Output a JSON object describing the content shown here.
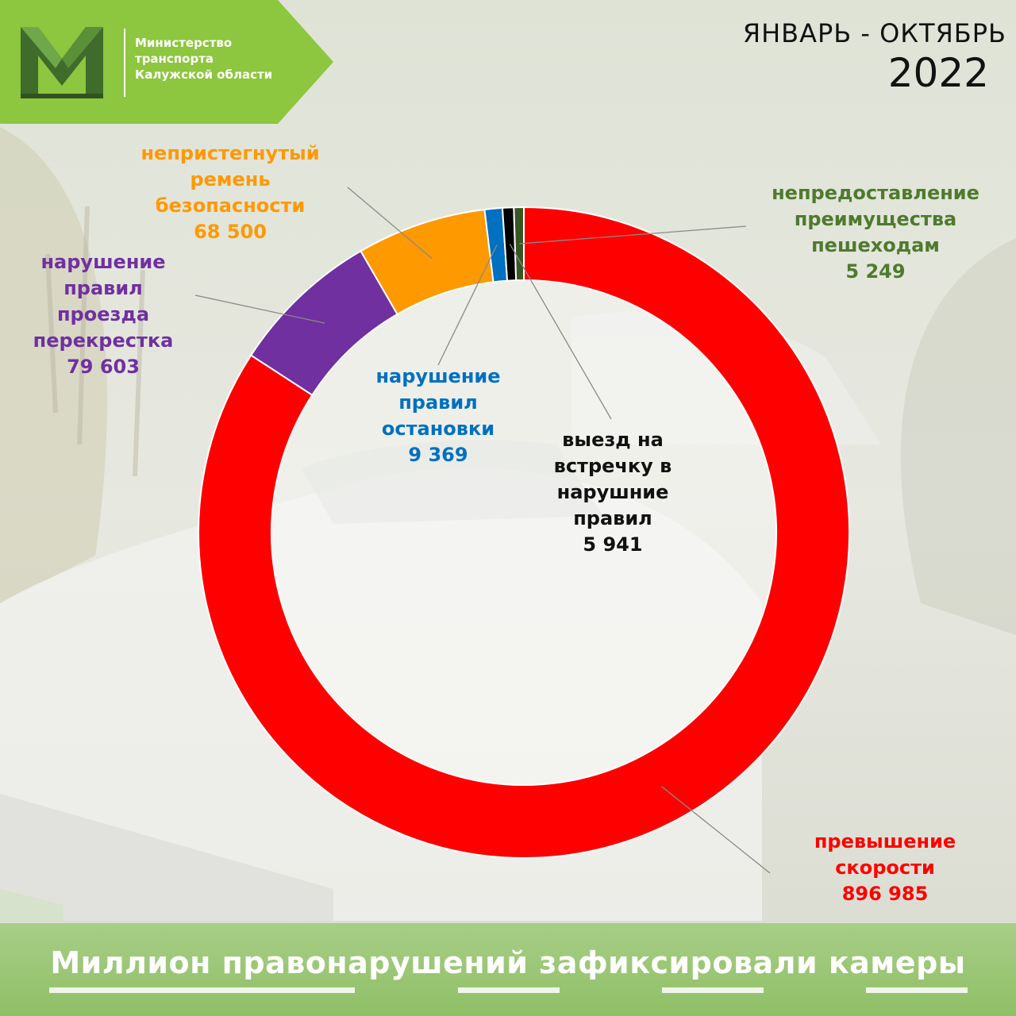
{
  "header": {
    "org_lines": [
      "Министерство",
      "транспорта",
      "Калужской области"
    ],
    "period_months": "ЯНВАРЬ - ОКТЯБРЬ",
    "period_year": "2022"
  },
  "footer": {
    "title": "Миллион правонарушений зафиксировали камеры"
  },
  "colors": {
    "brand_green": "#8dc63f",
    "dark_green": "#3f6b2b",
    "speed": "#ff0000",
    "intersection": "#7030a0",
    "seatbelt": "#ff9900",
    "stopping": "#0070c0",
    "oncoming": "#000000",
    "pedestrians": "#375623"
  },
  "chart_data": {
    "type": "pie",
    "donut": true,
    "title": "",
    "categories": [
      "превышение скорости",
      "нарушение правил проезда перекрестка",
      "непристегнутый ремень безопасности",
      "нарушение правил остановки",
      "выезд на встречку в нарушние правил",
      "непредоставление преимущества пешеходам"
    ],
    "values": [
      896985,
      79603,
      68500,
      9369,
      5941,
      5249
    ],
    "value_labels": [
      "896 985",
      "79 603",
      "68 500",
      "9 369",
      "5 941",
      "5 249"
    ],
    "slice_colors": [
      "#ff0000",
      "#7030a0",
      "#ff9900",
      "#0070c0",
      "#000000",
      "#375623"
    ],
    "labels": {
      "speed": {
        "lines": [
          "превышение",
          "скорости"
        ],
        "value": "896 985"
      },
      "intersection": {
        "lines": [
          "нарушение",
          "правил",
          "проезда",
          "перекрестка"
        ],
        "value": "79 603"
      },
      "seatbelt": {
        "lines": [
          "непристегнутый",
          "ремень",
          "безопасности"
        ],
        "value": "68 500"
      },
      "stopping": {
        "lines": [
          "нарушение",
          "правил",
          "остановки"
        ],
        "value": "9 369"
      },
      "oncoming": {
        "lines": [
          "выезд на",
          "встречку в",
          "нарушние",
          "правил"
        ],
        "value": "5 941"
      },
      "pedestrians": {
        "lines": [
          "непредоставление",
          "преимущества",
          "пешеходам"
        ],
        "value": "5 249"
      }
    }
  }
}
